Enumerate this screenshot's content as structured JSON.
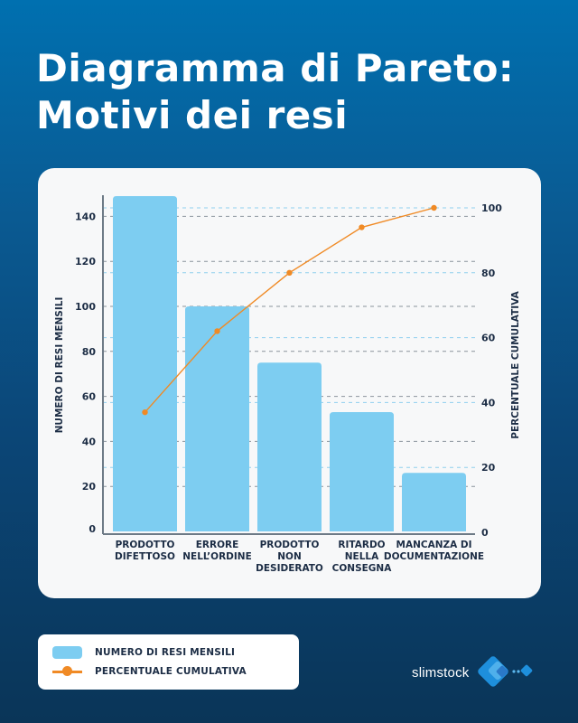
{
  "header": {
    "title_line1": "Diagramma di Pareto:",
    "title_line2": "Motivi dei resi"
  },
  "colors": {
    "bar": "#7dcdf1",
    "line": "#f08a25",
    "text": "#1c2d45",
    "background_top": "#0070b0",
    "background_bottom": "#0a3558",
    "card": "#f7f8f9"
  },
  "chart_data": {
    "type": "bar",
    "title": "Diagramma di Pareto: Motivi dei resi",
    "categories": [
      [
        "PRODOTTO",
        "DIFETTOSO"
      ],
      [
        "ERRORE",
        "NELL’ORDINE"
      ],
      [
        "PRODOTTO",
        "NON",
        "DESIDERATO"
      ],
      [
        "RITARDO",
        "NELLA",
        "CONSEGNA"
      ],
      [
        "MANCANZA DI",
        "DOCUMENTAZIONE"
      ]
    ],
    "series": [
      {
        "name": "NUMERO DI RESI MENSILI",
        "type": "bar",
        "axis": "left",
        "values": [
          149,
          100,
          75,
          53,
          26
        ]
      },
      {
        "name": "PERCENTUALE CUMULATIVA",
        "type": "line",
        "axis": "right",
        "values": [
          37,
          62,
          80,
          94,
          100
        ]
      }
    ],
    "ylabel": "NUMERO DI RESI MENSILI",
    "y2label": "PERCENTUALE CUMULATIVA",
    "yticks": [
      0,
      20,
      40,
      60,
      80,
      100,
      120,
      140
    ],
    "y2ticks": [
      0,
      20,
      40,
      60,
      80,
      100
    ],
    "ylim": [
      0,
      150
    ],
    "y2lim": [
      0,
      100
    ],
    "grid": true,
    "legend_position": "bottom-left"
  },
  "legend": {
    "items": [
      {
        "label": "NUMERO DI RESI MENSILI"
      },
      {
        "label": "PERCENTUALE CUMULATIVA"
      }
    ]
  },
  "brand": {
    "name": "slimstock"
  }
}
